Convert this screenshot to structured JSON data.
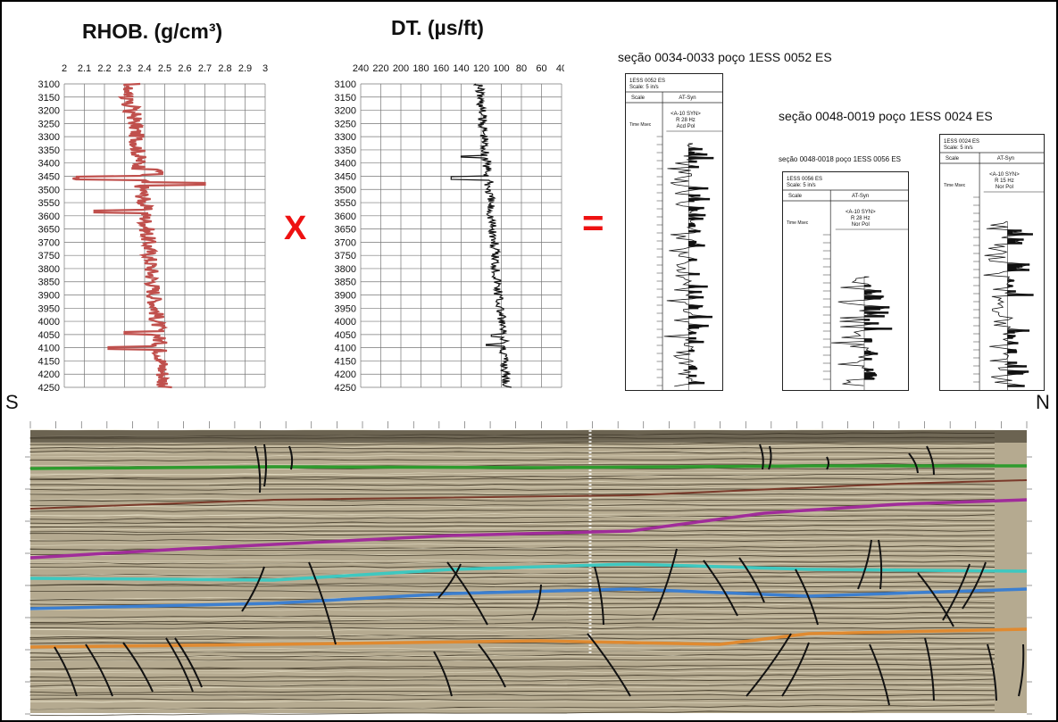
{
  "rhob": {
    "title": "RHOB. (g/cm³)",
    "ticks": [
      "2",
      "2.1",
      "2.2",
      "2.3",
      "2.4",
      "2.5",
      "2.6",
      "2.7",
      "2.8",
      "2.9",
      "3"
    ],
    "depths": [
      "3100",
      "3150",
      "3200",
      "3250",
      "3300",
      "3350",
      "3400",
      "3450",
      "3500",
      "3550",
      "3600",
      "3650",
      "3700",
      "3750",
      "3800",
      "3850",
      "3900",
      "3950",
      "4000",
      "4050",
      "4100",
      "4150",
      "4200",
      "4250"
    ],
    "color": "#c0504d"
  },
  "dt": {
    "title": "DT. (µs/ft)",
    "ticks": [
      "240",
      "220",
      "200",
      "180",
      "160",
      "140",
      "120",
      "100",
      "80",
      "60",
      "40"
    ],
    "depths": [
      "3100",
      "3150",
      "3200",
      "3250",
      "3300",
      "3350",
      "3400",
      "3450",
      "3500",
      "3550",
      "3600",
      "3650",
      "3700",
      "3750",
      "3800",
      "3850",
      "3900",
      "3950",
      "4000",
      "4050",
      "4100",
      "4150",
      "4200",
      "4250"
    ],
    "color": "#111111"
  },
  "operators": {
    "multiply": "X",
    "equals": "="
  },
  "sections": {
    "main": "seção 0034-0033 poço 1ESS 0052 ES",
    "right": "seção 0048-0019 poço 1ESS 0024 ES",
    "small": "seção 0048-0018 poço 1ESS 0056 ES"
  },
  "panels": {
    "p1": {
      "well": "1ESS 0052 ES",
      "scale": "Scale: 5 in/s",
      "col1": "Scale",
      "col2": "AT-Syn",
      "header": "<A-10 SYN>",
      "freq": "R 28 Hz",
      "pol": "Acd Pol",
      "axis": "Time Msec"
    },
    "p2": {
      "well": "1ESS 0056 ES",
      "scale": "Scale: 5 in/s",
      "col1": "Scale",
      "col2": "AT-Syn",
      "header": "<A-10 SYN>",
      "freq": "R 28 Hz",
      "pol": "Nor Pol",
      "axis": "Time Msec"
    },
    "p3": {
      "well": "1ESS 0024 ES",
      "scale": "Scale: 5 in/s",
      "col1": "Scale",
      "col2": "AT-Syn",
      "header": "<A-10 SYN>",
      "freq": "R 15 Hz",
      "pol": "Nor Pol",
      "axis": "Time Msec"
    }
  },
  "profile": {
    "left_label": "S",
    "right_label": "N",
    "horizon_colors": [
      "#2e9b2e",
      "#7a3a2a",
      "#a02c9a",
      "#3ec8c0",
      "#3c7fd0",
      "#e08a30"
    ],
    "seismic_bg": "#b5aa90"
  }
}
